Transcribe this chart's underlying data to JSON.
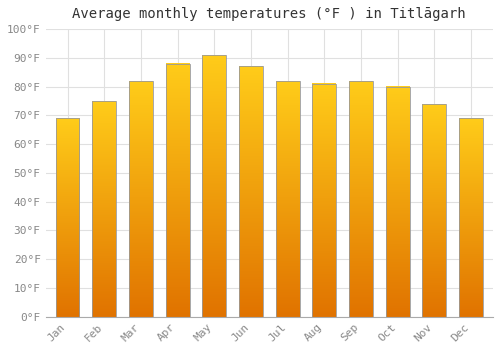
{
  "title": "Average monthly temperatures (°F ) in Titlāgarh",
  "months": [
    "Jan",
    "Feb",
    "Mar",
    "Apr",
    "May",
    "Jun",
    "Jul",
    "Aug",
    "Sep",
    "Oct",
    "Nov",
    "Dec"
  ],
  "values": [
    69,
    75,
    82,
    88,
    91,
    87,
    82,
    81,
    82,
    80,
    74,
    69
  ],
  "bar_color_top": "#FFB300",
  "bar_color_bottom": "#FF8C00",
  "bar_edge_color": "#999999",
  "ylim": [
    0,
    100
  ],
  "yticks": [
    0,
    10,
    20,
    30,
    40,
    50,
    60,
    70,
    80,
    90,
    100
  ],
  "ytick_labels": [
    "0°F",
    "10°F",
    "20°F",
    "30°F",
    "40°F",
    "50°F",
    "60°F",
    "70°F",
    "80°F",
    "90°F",
    "100°F"
  ],
  "background_color": "#FFFFFF",
  "grid_color": "#E0E0E0",
  "title_fontsize": 10,
  "tick_fontsize": 8,
  "tick_color": "#888888"
}
